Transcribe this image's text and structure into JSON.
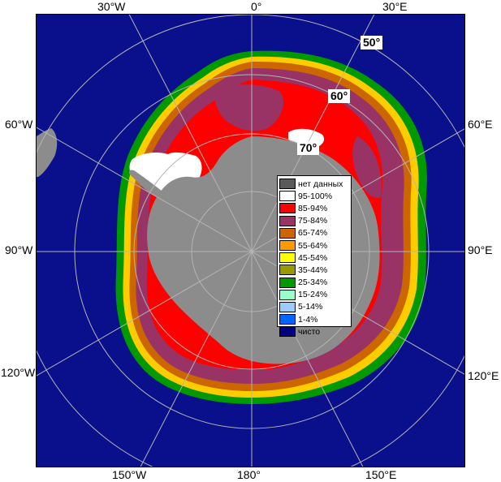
{
  "longitude_labels": {
    "top": [
      "30°W",
      "0°",
      "30°E"
    ],
    "bottom": [
      "150°W",
      "180°",
      "150°E"
    ],
    "left": [
      "60°W",
      "90°W",
      "120°W"
    ],
    "right": [
      "60°E",
      "90°E",
      "120°E"
    ]
  },
  "latitude_labels": [
    "50°",
    "60°",
    "70°"
  ],
  "legend": [
    {
      "label": "нет данных",
      "color": "#5a5a5a"
    },
    {
      "label": "95-100%",
      "color": "#ffffff"
    },
    {
      "label": "85-94%",
      "color": "#ff0000"
    },
    {
      "label": "75-84%",
      "color": "#993366"
    },
    {
      "label": "65-74%",
      "color": "#cc6600"
    },
    {
      "label": "55-64%",
      "color": "#ff9900"
    },
    {
      "label": "45-54%",
      "color": "#ffff00"
    },
    {
      "label": "35-44%",
      "color": "#999900"
    },
    {
      "label": "25-34%",
      "color": "#009900"
    },
    {
      "label": "15-24%",
      "color": "#99ffcc"
    },
    {
      "label": "5-14%",
      "color": "#99ccff"
    },
    {
      "label": "1-4%",
      "color": "#0066ff"
    },
    {
      "label": "чисто",
      "color": "#000080"
    }
  ],
  "colors": {
    "ocean": "#0a0f8c",
    "land": "#8c8c8c",
    "grid": "#b4b4b4"
  }
}
